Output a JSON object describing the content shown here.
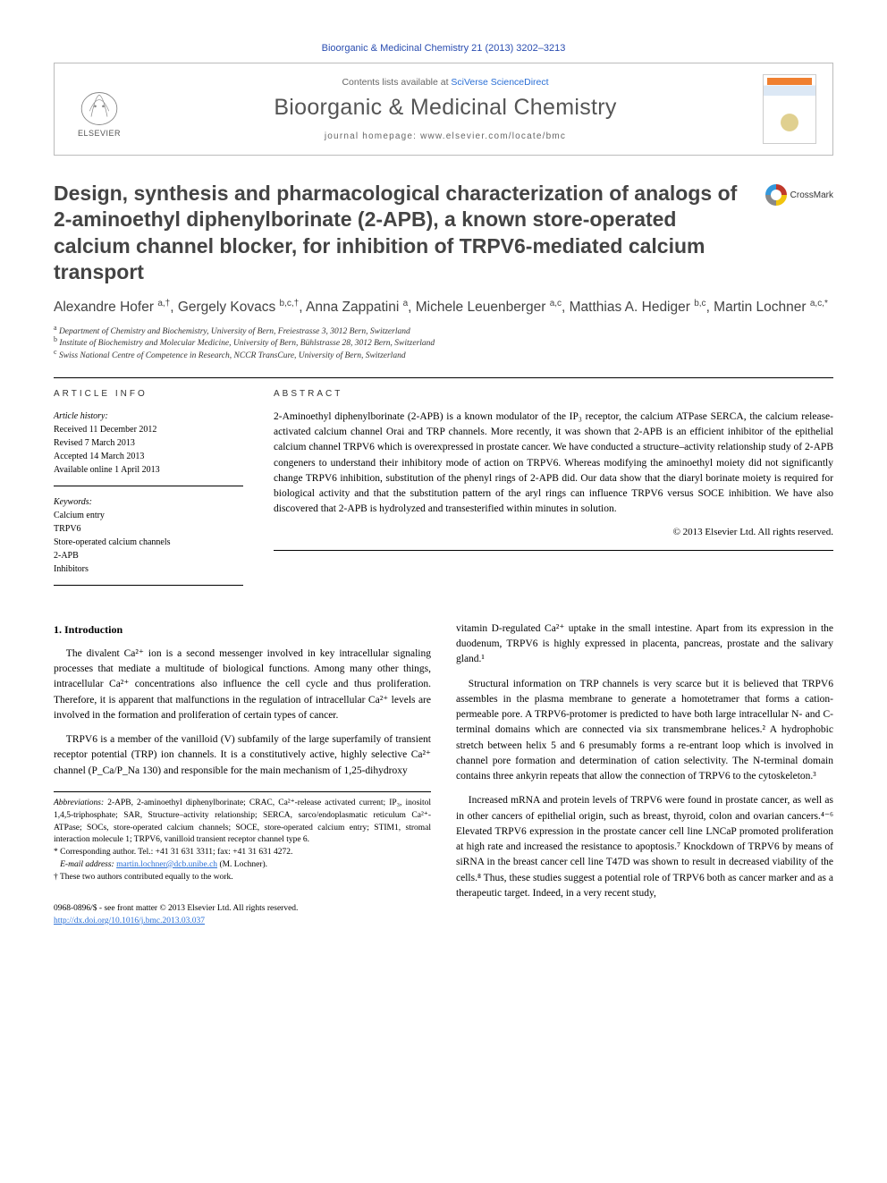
{
  "citation": "Bioorganic & Medicinal Chemistry 21 (2013) 3202–3213",
  "header": {
    "contents_prefix": "Contents lists available at ",
    "contents_link": "SciVerse ScienceDirect",
    "journal": "Bioorganic & Medicinal Chemistry",
    "homepage_prefix": "journal homepage: ",
    "homepage_url": "www.elsevier.com/locate/bmc",
    "publisher": "ELSEVIER"
  },
  "title": "Design, synthesis and pharmacological characterization of analogs of 2-aminoethyl diphenylborinate (2-APB), a known store-operated calcium channel blocker, for inhibition of TRPV6-mediated calcium transport",
  "crossmark": "CrossMark",
  "authors_html": "Alexandre Hofer <sup>a,†</sup>, Gergely Kovacs <sup>b,c,†</sup>, Anna Zappatini <sup>a</sup>, Michele Leuenberger <sup>a,c</sup>, Matthias A. Hediger <sup>b,c</sup>, Martin Lochner <sup>a,c,*</sup>",
  "affiliations": [
    {
      "sup": "a",
      "text": "Department of Chemistry and Biochemistry, University of Bern, Freiestrasse 3, 3012 Bern, Switzerland"
    },
    {
      "sup": "b",
      "text": "Institute of Biochemistry and Molecular Medicine, University of Bern, Bühlstrasse 28, 3012 Bern, Switzerland"
    },
    {
      "sup": "c",
      "text": "Swiss National Centre of Competence in Research, NCCR TransCure, University of Bern, Switzerland"
    }
  ],
  "info": {
    "heading": "ARTICLE INFO",
    "history_label": "Article history:",
    "history": [
      "Received 11 December 2012",
      "Revised 7 March 2013",
      "Accepted 14 March 2013",
      "Available online 1 April 2013"
    ],
    "keywords_label": "Keywords:",
    "keywords": [
      "Calcium entry",
      "TRPV6",
      "Store-operated calcium channels",
      "2-APB",
      "Inhibitors"
    ]
  },
  "abstract": {
    "heading": "ABSTRACT",
    "text": "2-Aminoethyl diphenylborinate (2-APB) is a known modulator of the IP₃ receptor, the calcium ATPase SERCA, the calcium release-activated calcium channel Orai and TRP channels. More recently, it was shown that 2-APB is an efficient inhibitor of the epithelial calcium channel TRPV6 which is overexpressed in prostate cancer. We have conducted a structure–activity relationship study of 2-APB congeners to understand their inhibitory mode of action on TRPV6. Whereas modifying the aminoethyl moiety did not significantly change TRPV6 inhibition, substitution of the phenyl rings of 2-APB did. Our data show that the diaryl borinate moiety is required for biological activity and that the substitution pattern of the aryl rings can influence TRPV6 versus SOCE inhibition. We have also discovered that 2-APB is hydrolyzed and transesterified within minutes in solution.",
    "copyright": "© 2013 Elsevier Ltd. All rights reserved."
  },
  "body": {
    "section1_heading": "1. Introduction",
    "left_paras": [
      "The divalent Ca²⁺ ion is a second messenger involved in key intracellular signaling processes that mediate a multitude of biological functions. Among many other things, intracellular Ca²⁺ concentrations also influence the cell cycle and thus proliferation. Therefore, it is apparent that malfunctions in the regulation of intracellular Ca²⁺ levels are involved in the formation and proliferation of certain types of cancer.",
      "TRPV6 is a member of the vanilloid (V) subfamily of the large superfamily of transient receptor potential (TRP) ion channels. It is a constitutively active, highly selective Ca²⁺ channel (P_Ca/P_Na 130) and responsible for the main mechanism of 1,25-dihydroxy"
    ],
    "right_paras": [
      "vitamin D-regulated Ca²⁺ uptake in the small intestine. Apart from its expression in the duodenum, TRPV6 is highly expressed in placenta, pancreas, prostate and the salivary gland.¹",
      "Structural information on TRP channels is very scarce but it is believed that TRPV6 assembles in the plasma membrane to generate a homotetramer that forms a cation-permeable pore. A TRPV6-protomer is predicted to have both large intracellular N- and C-terminal domains which are connected via six transmembrane helices.² A hydrophobic stretch between helix 5 and 6 presumably forms a re-entrant loop which is involved in channel pore formation and determination of cation selectivity. The N-terminal domain contains three ankyrin repeats that allow the connection of TRPV6 to the cytoskeleton.³",
      "Increased mRNA and protein levels of TRPV6 were found in prostate cancer, as well as in other cancers of epithelial origin, such as breast, thyroid, colon and ovarian cancers.⁴⁻⁶ Elevated TRPV6 expression in the prostate cancer cell line LNCaP promoted proliferation at high rate and increased the resistance to apoptosis.⁷ Knockdown of TRPV6 by means of siRNA in the breast cancer cell line T47D was shown to result in decreased viability of the cells.⁸ Thus, these studies suggest a potential role of TRPV6 both as cancer marker and as a therapeutic target. Indeed, in a very recent study,"
    ]
  },
  "footnotes": {
    "abbrev_label": "Abbreviations:",
    "abbrev_text": " 2-APB, 2-aminoethyl diphenylborinate; CRAC, Ca²⁺-release activated current; IP₃, inositol 1,4,5-triphosphate; SAR, Structure–activity relationship; SERCA, sarco/endoplasmatic reticulum Ca²⁺-ATPase; SOCs, store-operated calcium channels; SOCE, store-operated calcium entry; STIM1, stromal interaction molecule 1; TRPV6, vanilloid transient receptor channel type 6.",
    "corr": "* Corresponding author. Tel.: +41 31 631 3311; fax: +41 31 631 4272.",
    "email_label": "E-mail address:",
    "email": "martin.lochner@dcb.unibe.ch",
    "email_suffix": " (M. Lochner).",
    "equal": "† These two authors contributed equally to the work."
  },
  "bottom": {
    "line1": "0968-0896/$ - see front matter © 2013 Elsevier Ltd. All rights reserved.",
    "doi": "http://dx.doi.org/10.1016/j.bmc.2013.03.037"
  },
  "colors": {
    "link": "#2a6fd6",
    "heading": "#444444",
    "meta": "#666666"
  }
}
